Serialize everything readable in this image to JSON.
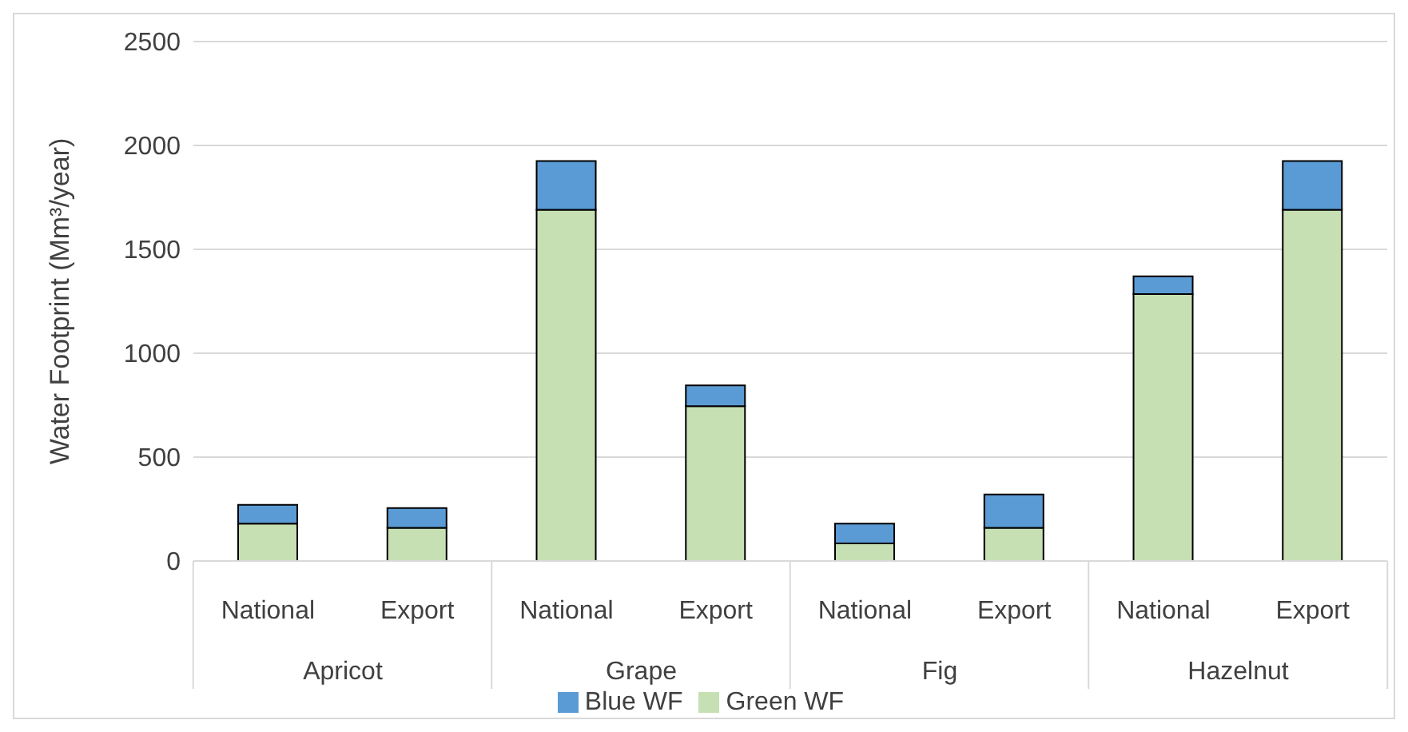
{
  "chart_data": {
    "type": "bar",
    "stacked": true,
    "ylabel": "Water Footprint (Mm³/year)",
    "categories": [
      "National",
      "Export",
      "National",
      "Export",
      "National",
      "Export",
      "National",
      "Export"
    ],
    "annotations": [
      "Apricot",
      "Grape",
      "Fig",
      "Hazelnut"
    ],
    "series": [
      {
        "name": "Green WF",
        "color": "#c6e0b4",
        "values": [
          180,
          160,
          1690,
          745,
          85,
          160,
          1285,
          1690
        ]
      },
      {
        "name": "Blue WF",
        "color": "#5b9bd5",
        "values": [
          90,
          95,
          235,
          100,
          95,
          160,
          85,
          235
        ]
      }
    ],
    "ylim": [
      0,
      2500
    ],
    "yticks": [
      0,
      500,
      1000,
      1500,
      2000,
      2500
    ],
    "grid": "y",
    "legend": "bottom"
  }
}
